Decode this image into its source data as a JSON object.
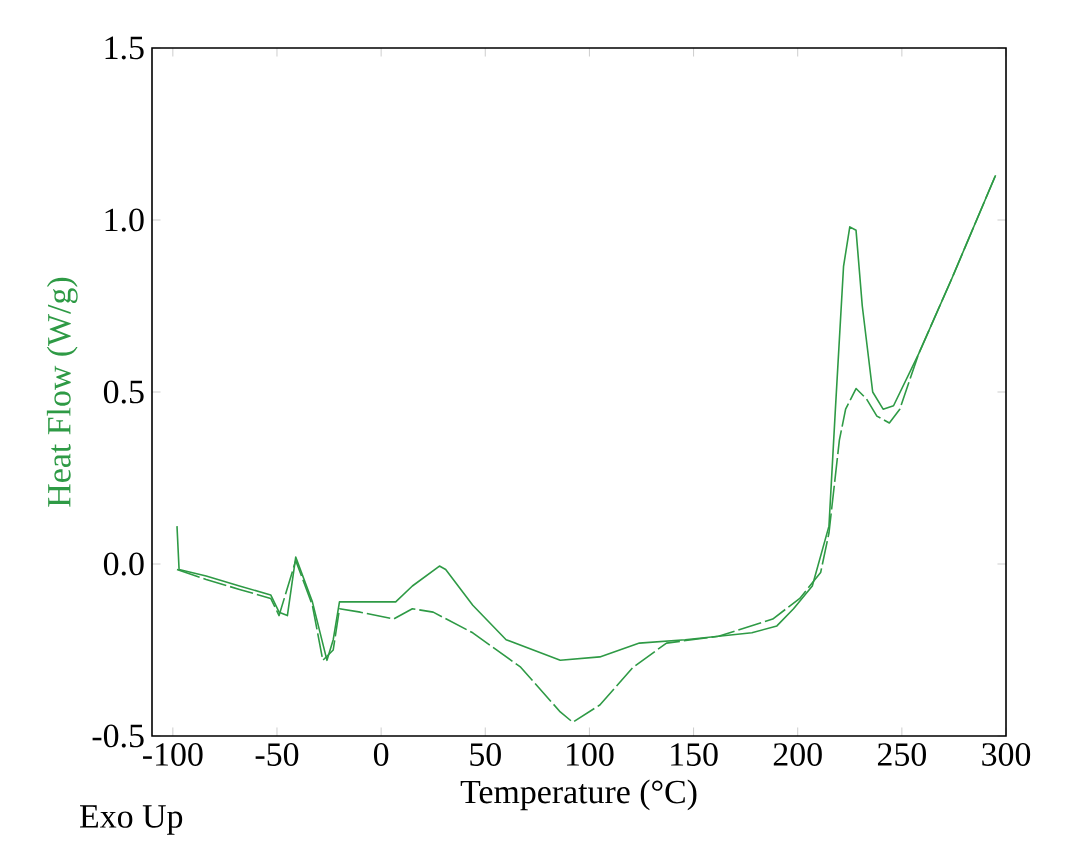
{
  "chart_data": {
    "type": "line",
    "xlabel": "Temperature (°C)",
    "ylabel": "Heat Flow (W/g)",
    "annotations": [
      "Exo Up"
    ],
    "xlim": [
      -110,
      300
    ],
    "ylim": [
      -0.5,
      1.5
    ],
    "xticks": [
      -100,
      -50,
      0,
      50,
      100,
      150,
      200,
      250,
      300
    ],
    "yticks": [
      {
        "value": -0.5,
        "label": "-0.5"
      },
      {
        "value": 0,
        "label": "0.0"
      },
      {
        "value": 0.5,
        "label": "0.5"
      },
      {
        "value": 1,
        "label": "1.0"
      },
      {
        "value": 1.5,
        "label": "1.5"
      }
    ],
    "marker": "none",
    "series": [
      {
        "color": "#2e9a45",
        "line_style": "solid",
        "x": [
          -98,
          -97,
          -84,
          -68,
          -53,
          -49,
          -45,
          -41,
          -33,
          -26,
          -23,
          -20,
          7,
          15,
          28,
          31,
          44,
          60,
          86,
          105,
          124,
          146,
          178,
          190,
          198,
          207,
          215,
          218,
          222,
          225,
          228,
          231,
          236,
          241,
          246,
          258,
          274,
          295
        ],
        "values": [
          0.11,
          -0.016,
          -0.035,
          -0.064,
          -0.09,
          -0.14,
          -0.15,
          0.02,
          -0.11,
          -0.28,
          -0.22,
          -0.11,
          -0.11,
          -0.064,
          -0.006,
          -0.016,
          -0.12,
          -0.22,
          -0.28,
          -0.27,
          -0.23,
          -0.22,
          -0.2,
          -0.18,
          -0.13,
          -0.064,
          0.11,
          0.44,
          0.865,
          0.98,
          0.97,
          0.75,
          0.5,
          0.45,
          0.46,
          0.61,
          0.83,
          1.13
        ]
      },
      {
        "color": "#2e9a45",
        "line_style": "dashed",
        "x": [
          -98,
          -84,
          -68,
          -53,
          -49,
          -41,
          -33,
          -28,
          -23,
          -20,
          -10,
          6,
          15,
          25,
          44,
          67,
          86,
          92,
          105,
          121,
          137,
          162,
          188,
          201,
          211,
          215,
          220,
          223,
          228,
          233,
          238,
          244,
          249,
          258,
          274,
          295
        ],
        "values": [
          -0.016,
          -0.045,
          -0.074,
          -0.1,
          -0.15,
          0.01,
          -0.12,
          -0.28,
          -0.25,
          -0.13,
          -0.14,
          -0.16,
          -0.13,
          -0.14,
          -0.2,
          -0.3,
          -0.43,
          -0.46,
          -0.41,
          -0.3,
          -0.23,
          -0.21,
          -0.16,
          -0.1,
          -0.025,
          0.09,
          0.36,
          0.45,
          0.51,
          0.48,
          0.43,
          0.41,
          0.45,
          0.61,
          0.83,
          1.13
        ]
      }
    ]
  }
}
